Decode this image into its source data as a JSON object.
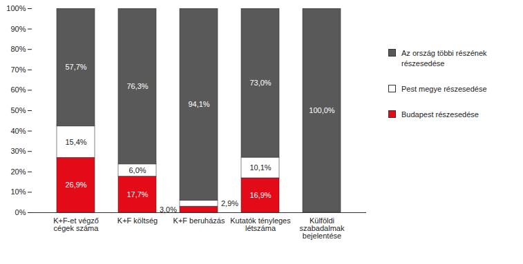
{
  "chart_data": {
    "type": "bar",
    "stacked": true,
    "data_labels": true,
    "legend": "right",
    "categories": [
      "K+F-et végző\ncégek száma",
      "K+F költség",
      "K+F beruházás",
      "Kutatók tényleges\nlétszáma",
      "Külföldi\nszabadalmak\nbejelentése"
    ],
    "series": [
      {
        "name": "Budapest részesedése",
        "color": "#e30b17",
        "values": [
          26.9,
          17.7,
          3.0,
          16.9,
          0
        ],
        "value_labels": [
          "26,9%",
          "17,7%",
          "3,0%",
          "16,9%",
          null
        ]
      },
      {
        "name": "Pest megye részesedése",
        "color": "#ffffff",
        "values": [
          15.4,
          6.0,
          2.9,
          10.1,
          0
        ],
        "value_labels": [
          "15,4%",
          "6,0%",
          "2,9%",
          "10,1%",
          null
        ]
      },
      {
        "name": "Az ország többi részének részesedése",
        "color": "#595959",
        "values": [
          57.7,
          76.3,
          94.1,
          73.0,
          100.0
        ],
        "value_labels": [
          "57,7%",
          "76,3%",
          "94,1%",
          "73,0%",
          "100,0%"
        ]
      }
    ],
    "ylim": [
      0,
      100
    ],
    "yticks": [
      {
        "value": 0,
        "label": "0%"
      },
      {
        "value": 10,
        "label": "10%"
      },
      {
        "value": 20,
        "label": "20%"
      },
      {
        "value": 30,
        "label": "30%"
      },
      {
        "value": 40,
        "label": "40%"
      },
      {
        "value": 50,
        "label": "50%"
      },
      {
        "value": 60,
        "label": "60%"
      },
      {
        "value": 70,
        "label": "70%"
      },
      {
        "value": 80,
        "label": "80%"
      },
      {
        "value": 90,
        "label": "90%"
      },
      {
        "value": 100,
        "label": "100%"
      }
    ],
    "grid": false
  }
}
